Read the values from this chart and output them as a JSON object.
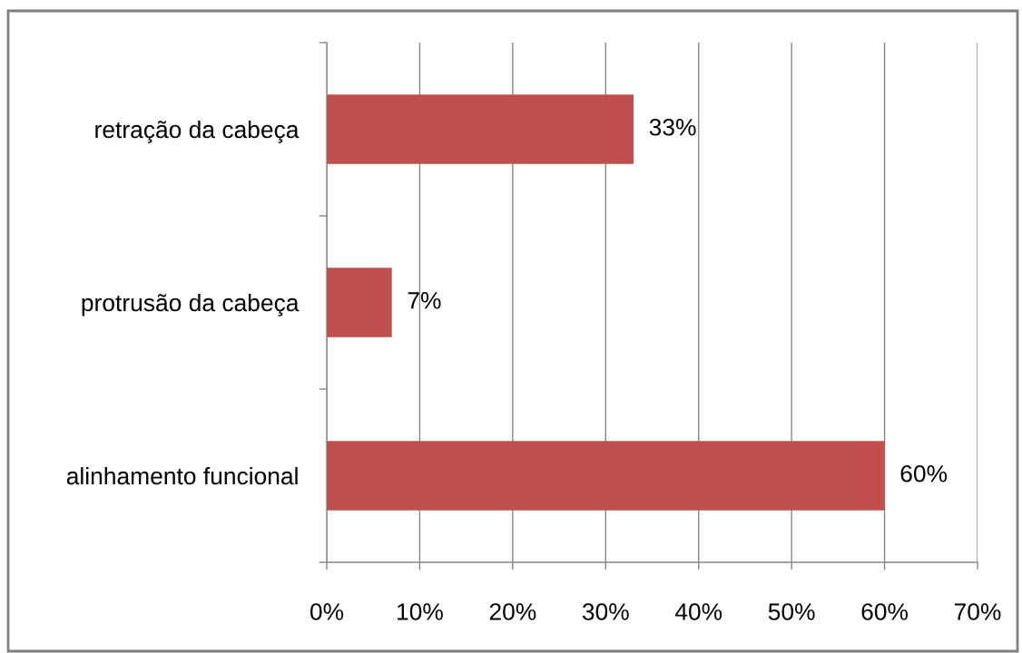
{
  "chart_data": {
    "type": "bar",
    "orientation": "horizontal",
    "categories": [
      "retração da cabeça",
      "protrusão da cabeça",
      "alinhamento funcional"
    ],
    "values": [
      33,
      7,
      60
    ],
    "color": "#c0504d",
    "value_labels": [
      "33%",
      "7%",
      "60%"
    ],
    "xlim": [
      0,
      70
    ],
    "xticks": [
      {
        "value": 0,
        "label": "0%"
      },
      {
        "value": 10,
        "label": "10%"
      },
      {
        "value": 20,
        "label": "20%"
      },
      {
        "value": 30,
        "label": "30%"
      },
      {
        "value": 40,
        "label": "40%"
      },
      {
        "value": 50,
        "label": "50%"
      },
      {
        "value": 60,
        "label": "60%"
      },
      {
        "value": 70,
        "label": "70%"
      }
    ],
    "grid": "x",
    "legend": false
  }
}
